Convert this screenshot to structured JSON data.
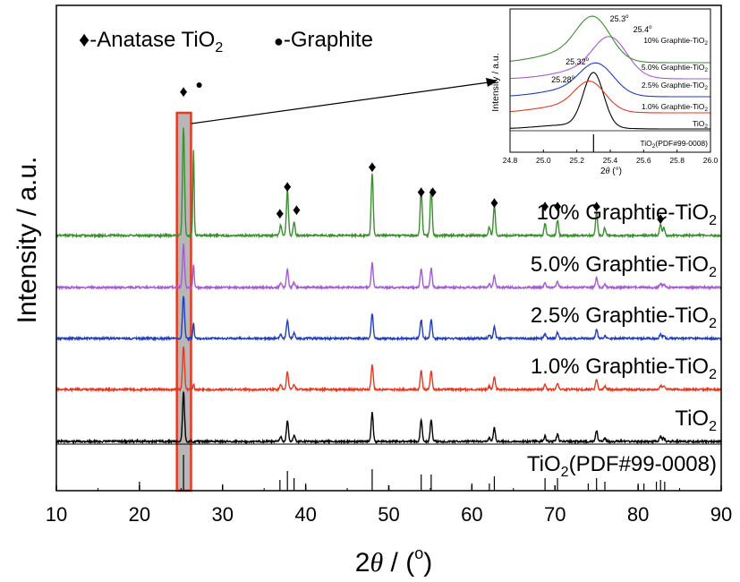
{
  "chart_data": [
    {
      "type": "line",
      "xlabel_main": "2",
      "xlabel_theta": "θ",
      "xlabel_rest": " / (",
      "xlabel_deg": "o",
      "xlabel_close": ")",
      "ylabel": "Intensity / a.u.",
      "xlim": [
        10,
        90
      ],
      "x_ticks": [
        10,
        20,
        30,
        40,
        50,
        60,
        70,
        80,
        90
      ],
      "grid": false,
      "legend": {
        "anatase_symbol": "♦",
        "anatase_label": "-Anatase TiO",
        "anatase_sub": "2",
        "graphite_symbol": "●",
        "graphite_label": "-Graphite"
      },
      "highlight_region_x": [
        24.5,
        26.2
      ],
      "series_colors": [
        "#000000",
        "#e8391e",
        "#1f3fbf",
        "#a75ad6",
        "#3a8f2e"
      ],
      "series": [
        {
          "name_main": "TiO",
          "name_sub": "2",
          "name_end": "",
          "color": "#000000",
          "graphite_peak": 0
        },
        {
          "name_main": "1.0% Graphtie-TiO",
          "name_sub": "2",
          "name_end": "",
          "color": "#e8391e",
          "graphite_peak": 0.12
        },
        {
          "name_main": "2.5% Graphtie-TiO",
          "name_sub": "2",
          "name_end": "",
          "color": "#1f3fbf",
          "graphite_peak": 0.35
        },
        {
          "name_main": "5.0% Graphtie-TiO",
          "name_sub": "2",
          "name_end": "",
          "color": "#a75ad6",
          "graphite_peak": 0.55
        },
        {
          "name_main": "10% Graphtie-TiO",
          "name_sub": "2",
          "name_end": "",
          "color": "#3a8f2e",
          "graphite_peak": 0.8
        }
      ],
      "anatase_peaks": [
        {
          "x": 25.3,
          "h": 1.0
        },
        {
          "x": 37.0,
          "h": 0.1
        },
        {
          "x": 37.8,
          "h": 0.42
        },
        {
          "x": 38.6,
          "h": 0.12
        },
        {
          "x": 48.0,
          "h": 0.58
        },
        {
          "x": 53.9,
          "h": 0.44
        },
        {
          "x": 55.1,
          "h": 0.44
        },
        {
          "x": 62.1,
          "h": 0.08
        },
        {
          "x": 62.7,
          "h": 0.28
        },
        {
          "x": 68.8,
          "h": 0.11
        },
        {
          "x": 70.3,
          "h": 0.14
        },
        {
          "x": 75.0,
          "h": 0.22
        },
        {
          "x": 76.0,
          "h": 0.07
        },
        {
          "x": 82.7,
          "h": 0.1
        },
        {
          "x": 83.1,
          "h": 0.07
        }
      ],
      "graphite_x": 26.5,
      "reference": {
        "label_main": "TiO",
        "label_sub": "2",
        "label_end": "(PDF#99-0008)",
        "sticks": [
          {
            "x": 25.3,
            "h": 1.0
          },
          {
            "x": 20.0,
            "h": 0.25
          },
          {
            "x": 30.0,
            "h": 0.18
          },
          {
            "x": 36.9,
            "h": 0.3
          },
          {
            "x": 37.8,
            "h": 0.55
          },
          {
            "x": 38.6,
            "h": 0.35
          },
          {
            "x": 40.0,
            "h": 0.2
          },
          {
            "x": 48.0,
            "h": 0.6
          },
          {
            "x": 50.0,
            "h": 0.15
          },
          {
            "x": 53.9,
            "h": 0.45
          },
          {
            "x": 55.1,
            "h": 0.45
          },
          {
            "x": 60.0,
            "h": 0.2
          },
          {
            "x": 62.1,
            "h": 0.2
          },
          {
            "x": 62.7,
            "h": 0.4
          },
          {
            "x": 68.8,
            "h": 0.35
          },
          {
            "x": 70.3,
            "h": 0.35
          },
          {
            "x": 74.0,
            "h": 0.2
          },
          {
            "x": 75.0,
            "h": 0.35
          },
          {
            "x": 76.0,
            "h": 0.25
          },
          {
            "x": 80.0,
            "h": 0.2
          },
          {
            "x": 80.7,
            "h": 0.2
          },
          {
            "x": 82.2,
            "h": 0.25
          },
          {
            "x": 82.7,
            "h": 0.3
          },
          {
            "x": 83.2,
            "h": 0.25
          }
        ]
      },
      "peak_markers": [
        {
          "x": 25.3,
          "symbol": "♦"
        },
        {
          "x": 36.9,
          "symbol": "♦"
        },
        {
          "x": 37.8,
          "symbol": "♦"
        },
        {
          "x": 38.9,
          "symbol": "♦"
        },
        {
          "x": 48.0,
          "symbol": "♦"
        },
        {
          "x": 53.9,
          "symbol": "♦"
        },
        {
          "x": 55.3,
          "symbol": "♦"
        },
        {
          "x": 62.7,
          "symbol": "♦"
        },
        {
          "x": 68.8,
          "symbol": "♦"
        },
        {
          "x": 70.3,
          "symbol": "♦"
        },
        {
          "x": 75.0,
          "symbol": "♦"
        },
        {
          "x": 82.7,
          "symbol": "♦"
        },
        {
          "x": 27.2,
          "symbol": "●"
        }
      ]
    },
    {
      "type": "line",
      "xlabel_main": "2",
      "xlabel_theta": "θ",
      "xlabel_rest": " (°)",
      "ylabel": "Intensity / a.u.",
      "xlim": [
        24.8,
        26.0
      ],
      "x_ticks": [
        "24.8",
        "25.0",
        "25.2",
        "25.4",
        "25.6",
        "25.8",
        "26.0"
      ],
      "series": [
        {
          "name": "TiO",
          "name_sub": "2",
          "color": "#000000",
          "peak_x": 25.3
        },
        {
          "name": "1.0% Graphtie-TiO",
          "name_sub": "2",
          "color": "#e8391e",
          "peak_x": 25.28
        },
        {
          "name": "2.5% Graphtie-TiO",
          "name_sub": "2",
          "color": "#1f3fbf",
          "peak_x": 25.32
        },
        {
          "name": "5.0% Graphtie-TiO",
          "name_sub": "2",
          "color": "#a75ad6",
          "peak_x": 25.4
        },
        {
          "name": "10% Graphtie-TiO",
          "name_sub": "2",
          "color": "#3a8f2e",
          "peak_x": 25.3
        }
      ],
      "annotations": [
        {
          "text": "25.28",
          "deg": "o"
        },
        {
          "text": "25.32",
          "deg": "o"
        },
        {
          "text": "25.3",
          "deg": "o"
        },
        {
          "text": "25.4",
          "deg": "o"
        }
      ],
      "reference": {
        "label_main": "TiO",
        "label_sub": "2",
        "label_end": "(PDF#99-0008)",
        "stick_x": 25.3
      }
    }
  ]
}
